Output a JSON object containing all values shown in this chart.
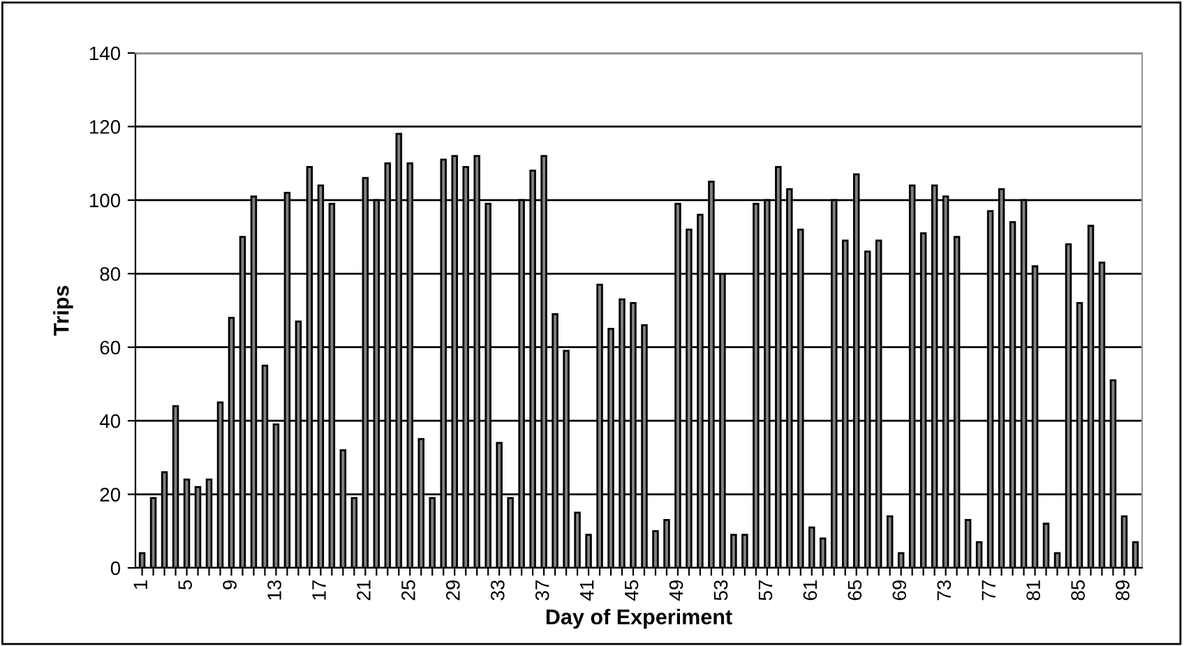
{
  "chart_data": {
    "type": "bar",
    "xlabel": "Day of Experiment",
    "ylabel": "Trips",
    "categories": [
      "1",
      null,
      null,
      null,
      "5",
      null,
      null,
      null,
      "9",
      null,
      null,
      null,
      "13",
      null,
      null,
      null,
      "17",
      null,
      null,
      null,
      "21",
      null,
      null,
      null,
      "25",
      null,
      null,
      null,
      "29",
      null,
      null,
      null,
      "33",
      null,
      null,
      null,
      "37",
      null,
      null,
      null,
      "41",
      null,
      null,
      null,
      "45",
      null,
      null,
      null,
      "49",
      null,
      null,
      null,
      "53",
      null,
      null,
      null,
      "57",
      null,
      null,
      null,
      "61",
      null,
      null,
      null,
      "65",
      null,
      null,
      null,
      "69",
      null,
      null,
      null,
      "73",
      null,
      null,
      null,
      "77",
      null,
      null,
      null,
      "81",
      null,
      null,
      null,
      "85",
      null,
      null,
      null,
      "89",
      null
    ],
    "values": [
      4,
      19,
      26,
      44,
      24,
      22,
      24,
      45,
      68,
      90,
      101,
      55,
      39,
      102,
      67,
      109,
      104,
      99,
      32,
      19,
      106,
      100,
      110,
      118,
      110,
      35,
      19,
      111,
      112,
      109,
      112,
      99,
      34,
      19,
      100,
      108,
      112,
      69,
      59,
      15,
      9,
      77,
      65,
      73,
      72,
      66,
      10,
      13,
      99,
      92,
      96,
      105,
      80,
      9,
      9,
      99,
      100,
      109,
      103,
      92,
      11,
      8,
      100,
      89,
      107,
      86,
      89,
      14,
      4,
      104,
      91,
      104,
      101,
      90,
      13,
      7,
      97,
      103,
      94,
      100,
      82,
      12,
      4,
      88,
      72,
      93,
      83,
      51,
      14,
      7
    ],
    "color": "#808080",
    "ylim": [
      0,
      140
    ],
    "yticks": [
      0,
      20,
      40,
      60,
      80,
      100,
      120,
      140
    ],
    "grid": "y"
  }
}
